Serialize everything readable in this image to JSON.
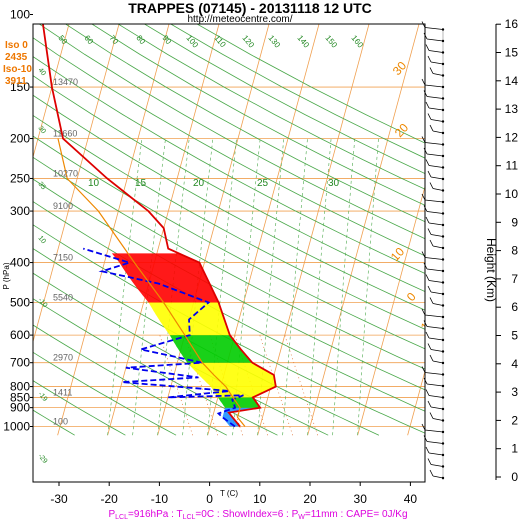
{
  "chart_data": {
    "type": "line",
    "title": "TRAPPES (07145) - 20131118 12 UTC",
    "subtitle": "http://meteocentre.com/",
    "xlabel": "T (C)",
    "ylabel": "P (hPa)",
    "y2label": "Height (Km)",
    "xlim": [
      -35,
      48
    ],
    "ylim": [
      1050,
      100
    ],
    "y_scale": "log",
    "grid": true,
    "x_ticks": [
      "-30",
      "-20",
      "-10",
      "0",
      "10",
      "20",
      "30",
      "40"
    ],
    "pressure_ticks": [
      "100",
      "150",
      "200",
      "250",
      "300",
      "400",
      "500",
      "600",
      "700",
      "800",
      "850",
      "900",
      "1000"
    ],
    "height_ticks": [
      "16",
      "15",
      "14",
      "13",
      "12",
      "11",
      "10",
      "9",
      "8",
      "7",
      "6",
      "5",
      "4",
      "3",
      "2",
      "1",
      "0"
    ],
    "height_labels": [
      {
        "p": 100,
        "t": "16030"
      },
      {
        "p": 150,
        "t": "13470"
      },
      {
        "p": 200,
        "t": "11660"
      },
      {
        "p": 250,
        "t": "10270"
      },
      {
        "p": 300,
        "t": "9100"
      },
      {
        "p": 400,
        "t": "7150"
      },
      {
        "p": 500,
        "t": "5540"
      },
      {
        "p": 700,
        "t": "2970"
      },
      {
        "p": 850,
        "t": "1411"
      },
      {
        "p": 1000,
        "t": "100"
      }
    ],
    "freezing_levels": {
      "iso0_label": "Iso 0",
      "iso0_value": "2435",
      "iso10_label": "Iso-10",
      "iso10_value": "3911"
    },
    "isotherm_labels": [
      "10",
      "0",
      "10",
      "20",
      "30",
      "20",
      "30"
    ],
    "theta_labels": [
      "40",
      "30",
      "35",
      "10",
      "-10",
      "-19",
      "-29",
      "-39"
    ],
    "mixing_ratio_labels": [
      "10",
      "15",
      "20",
      "25",
      "30"
    ],
    "theta_e_labels": [
      "50",
      "60",
      "70",
      "80",
      "90",
      "100",
      "110",
      "120",
      "130",
      "140",
      "150",
      "160"
    ],
    "series": [
      {
        "name": "temperature",
        "color": "#dd0000",
        "points": [
          [
            6,
            1000
          ],
          [
            4,
            950
          ],
          [
            3,
            925
          ],
          [
            9,
            900
          ],
          [
            7,
            850
          ],
          [
            11,
            800
          ],
          [
            10,
            750
          ],
          [
            5,
            700
          ],
          [
            2,
            650
          ],
          [
            -1,
            600
          ],
          [
            -5,
            500
          ],
          [
            -11,
            400
          ],
          [
            -18,
            370
          ],
          [
            -20,
            330
          ],
          [
            -24,
            300
          ],
          [
            -34,
            250
          ],
          [
            -45,
            200
          ],
          [
            -50,
            150
          ],
          [
            -56,
            100
          ]
        ]
      },
      {
        "name": "dewpoint",
        "color": "#0000ee",
        "points": [
          [
            5,
            1000
          ],
          [
            2,
            950
          ],
          [
            1,
            930
          ],
          [
            4,
            900
          ],
          [
            3,
            860
          ],
          [
            5,
            840
          ],
          [
            -10,
            850
          ],
          [
            2,
            820
          ],
          [
            -20,
            780
          ],
          [
            -5,
            760
          ],
          [
            -20,
            720
          ],
          [
            -5,
            700
          ],
          [
            -18,
            650
          ],
          [
            -9,
            600
          ],
          [
            -10,
            550
          ],
          [
            -7,
            500
          ],
          [
            -18,
            450
          ],
          [
            -30,
            420
          ],
          [
            -25,
            400
          ],
          [
            -35,
            370
          ]
        ]
      },
      {
        "name": "parcel",
        "color": "#ee8800",
        "points": [
          [
            7,
            1000
          ],
          [
            5,
            950
          ],
          [
            5,
            900
          ],
          [
            3,
            850
          ],
          [
            1,
            800
          ],
          [
            -2,
            750
          ],
          [
            -5,
            700
          ],
          [
            -10,
            600
          ],
          [
            -16,
            500
          ],
          [
            -24,
            400
          ],
          [
            -34,
            300
          ],
          [
            -42,
            250
          ],
          [
            -46,
            200
          ]
        ]
      }
    ],
    "footer": {
      "lcl": "P",
      "lcl_sub": "LCL",
      "lcl_val": "=916hPa : T",
      "tlcl_sub": "LCL",
      "tlcl_val": "=0C : ShowIndex=6 : P",
      "pw_sub": "W",
      "rest": "=11mm : CAPE= 0J/Kg"
    }
  }
}
